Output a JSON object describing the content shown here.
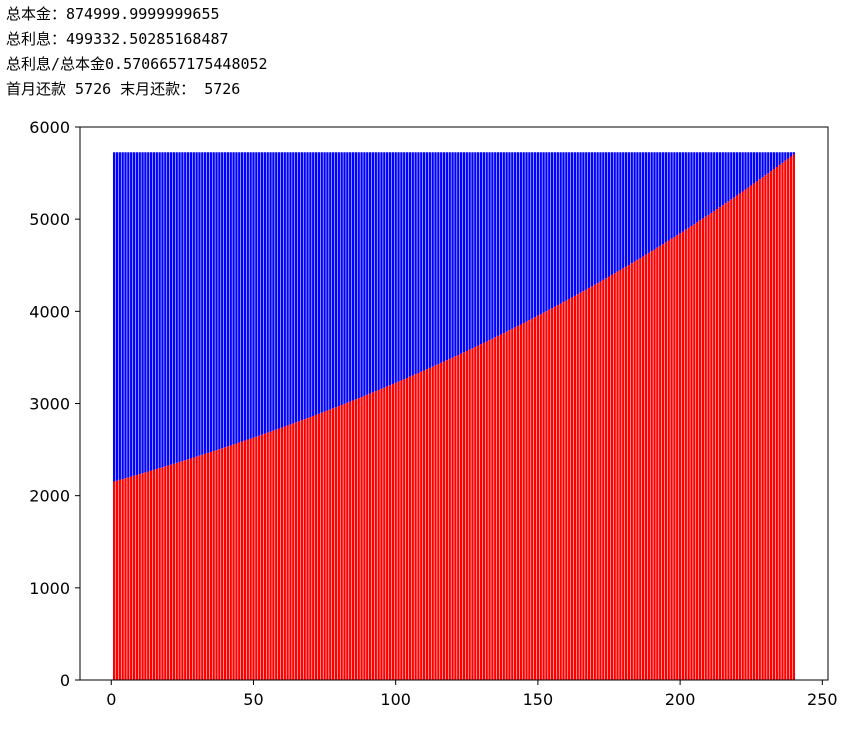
{
  "output_lines": [
    "总本金：874999.9999999655",
    "总利息：499332.50285168487",
    "总利息/总本金0.5706657175448052",
    "首月还款 5726 末月还款： 5726"
  ],
  "chart_data": {
    "type": "bar",
    "stacked": true,
    "x": [
      1,
      2,
      3,
      4,
      5,
      6,
      7,
      8,
      9,
      10,
      11,
      12,
      13,
      14,
      15,
      16,
      17,
      18,
      19,
      20,
      21,
      22,
      23,
      24,
      25,
      26,
      27,
      28,
      29,
      30,
      31,
      32,
      33,
      34,
      35,
      36,
      37,
      38,
      39,
      40,
      41,
      42,
      43,
      44,
      45,
      46,
      47,
      48,
      49,
      50,
      51,
      52,
      53,
      54,
      55,
      56,
      57,
      58,
      59,
      60,
      61,
      62,
      63,
      64,
      65,
      66,
      67,
      68,
      69,
      70,
      71,
      72,
      73,
      74,
      75,
      76,
      77,
      78,
      79,
      80,
      81,
      82,
      83,
      84,
      85,
      86,
      87,
      88,
      89,
      90,
      91,
      92,
      93,
      94,
      95,
      96,
      97,
      98,
      99,
      100,
      101,
      102,
      103,
      104,
      105,
      106,
      107,
      108,
      109,
      110,
      111,
      112,
      113,
      114,
      115,
      116,
      117,
      118,
      119,
      120,
      121,
      122,
      123,
      124,
      125,
      126,
      127,
      128,
      129,
      130,
      131,
      132,
      133,
      134,
      135,
      136,
      137,
      138,
      139,
      140,
      141,
      142,
      143,
      144,
      145,
      146,
      147,
      148,
      149,
      150,
      151,
      152,
      153,
      154,
      155,
      156,
      157,
      158,
      159,
      160,
      161,
      162,
      163,
      164,
      165,
      166,
      167,
      168,
      169,
      170,
      171,
      172,
      173,
      174,
      175,
      176,
      177,
      178,
      179,
      180,
      181,
      182,
      183,
      184,
      185,
      186,
      187,
      188,
      189,
      190,
      191,
      192,
      193,
      194,
      195,
      196,
      197,
      198,
      199,
      200,
      201,
      202,
      203,
      204,
      205,
      206,
      207,
      208,
      209,
      210,
      211,
      212,
      213,
      214,
      215,
      216,
      217,
      218,
      219,
      220,
      221,
      222,
      223,
      224,
      225,
      226,
      227,
      228,
      229,
      230,
      231,
      232,
      233,
      234,
      235,
      236,
      237,
      238,
      239,
      240
    ],
    "series": [
      {
        "color": "red",
        "values": [
          2154,
          2162,
          2171,
          2180,
          2189,
          2198,
          2207,
          2216,
          2225,
          2234,
          2243,
          2252,
          2262,
          2271,
          2280,
          2290,
          2299,
          2308,
          2318,
          2327,
          2336,
          2346,
          2356,
          2366,
          2375,
          2385,
          2395,
          2404,
          2414,
          2424,
          2434,
          2444,
          2454,
          2464,
          2474,
          2484,
          2494,
          2504,
          2515,
          2525,
          2535,
          2545,
          2556,
          2566,
          2577,
          2587,
          2598,
          2609,
          2619,
          2630,
          2640,
          2651,
          2662,
          2673,
          2684,
          2695,
          2706,
          2717,
          2728,
          2739,
          2750,
          2761,
          2773,
          2784,
          2796,
          2807,
          2819,
          2830,
          2842,
          2853,
          2864,
          2876,
          2888,
          2900,
          2912,
          2924,
          2936,
          2948,
          2960,
          2972,
          2984,
          2996,
          3008,
          3021,
          3033,
          3046,
          3058,
          3070,
          3083,
          3095,
          3108,
          3121,
          3133,
          3146,
          3159,
          3172,
          3185,
          3198,
          3211,
          3224,
          3237,
          3250,
          3264,
          3277,
          3291,
          3304,
          3318,
          3331,
          3345,
          3358,
          3372,
          3386,
          3400,
          3414,
          3428,
          3442,
          3456,
          3470,
          3484,
          3498,
          3512,
          3526,
          3541,
          3556,
          3570,
          3585,
          3599,
          3614,
          3629,
          3643,
          3658,
          3673,
          3688,
          3703,
          3719,
          3734,
          3749,
          3764,
          3779,
          3795,
          3810,
          3826,
          3842,
          3857,
          3873,
          3889,
          3905,
          3921,
          3937,
          3953,
          3968,
          3985,
          4001,
          4018,
          4034,
          4051,
          4067,
          4084,
          4100,
          4117,
          4134,
          4151,
          4168,
          4185,
          4202,
          4219,
          4237,
          4254,
          4271,
          4288,
          4305,
          4323,
          4341,
          4359,
          4377,
          4395,
          4413,
          4431,
          4449,
          4467,
          4485,
          4503,
          4522,
          4540,
          4559,
          4578,
          4596,
          4615,
          4634,
          4652,
          4671,
          4690,
          4710,
          4729,
          4749,
          4768,
          4788,
          4807,
          4826,
          4846,
          4865,
          4886,
          4906,
          4926,
          4946,
          4966,
          4987,
          5007,
          5027,
          5047,
          5068,
          5089,
          5110,
          5131,
          5152,
          5173,
          5194,
          5215,
          5236,
          5257,
          5279,
          5300,
          5322,
          5344,
          5366,
          5388,
          5410,
          5432,
          5454,
          5476,
          5498,
          5521,
          5544,
          5566,
          5589,
          5612,
          5635,
          5658,
          5680,
          5703
        ]
      },
      {
        "color": "blue",
        "values": [
          3572,
          3564,
          3555,
          3546,
          3537,
          3528,
          3519,
          3510,
          3501,
          3492,
          3483,
          3474,
          3464,
          3455,
          3446,
          3436,
          3427,
          3418,
          3408,
          3399,
          3390,
          3380,
          3370,
          3360,
          3351,
          3341,
          3331,
          3322,
          3312,
          3302,
          3292,
          3282,
          3272,
          3262,
          3252,
          3242,
          3232,
          3222,
          3211,
          3201,
          3191,
          3181,
          3170,
          3160,
          3149,
          3139,
          3128,
          3117,
          3107,
          3096,
          3086,
          3075,
          3064,
          3053,
          3042,
          3031,
          3020,
          3009,
          2998,
          2987,
          2976,
          2965,
          2953,
          2942,
          2930,
          2919,
          2907,
          2896,
          2884,
          2873,
          2862,
          2850,
          2838,
          2826,
          2814,
          2802,
          2790,
          2778,
          2766,
          2754,
          2742,
          2730,
          2718,
          2705,
          2693,
          2680,
          2668,
          2656,
          2643,
          2631,
          2618,
          2605,
          2593,
          2580,
          2567,
          2554,
          2541,
          2528,
          2515,
          2502,
          2489,
          2476,
          2462,
          2449,
          2435,
          2422,
          2408,
          2395,
          2381,
          2368,
          2354,
          2340,
          2326,
          2312,
          2298,
          2284,
          2270,
          2256,
          2242,
          2228,
          2214,
          2200,
          2185,
          2170,
          2156,
          2141,
          2127,
          2112,
          2097,
          2083,
          2068,
          2053,
          2038,
          2023,
          2007,
          1992,
          1977,
          1962,
          1947,
          1931,
          1916,
          1900,
          1884,
          1869,
          1853,
          1837,
          1821,
          1805,
          1789,
          1773,
          1758,
          1741,
          1725,
          1708,
          1692,
          1675,
          1659,
          1642,
          1626,
          1609,
          1592,
          1575,
          1558,
          1541,
          1524,
          1507,
          1489,
          1472,
          1455,
          1438,
          1421,
          1403,
          1385,
          1367,
          1349,
          1331,
          1313,
          1295,
          1277,
          1259,
          1241,
          1223,
          1204,
          1186,
          1167,
          1148,
          1130,
          1111,
          1092,
          1074,
          1055,
          1036,
          1016,
          997,
          977,
          958,
          938,
          919,
          900,
          880,
          861,
          840,
          820,
          800,
          780,
          760,
          739,
          719,
          699,
          679,
          658,
          637,
          616,
          595,
          574,
          553,
          532,
          511,
          490,
          469,
          447,
          426,
          404,
          382,
          360,
          338,
          316,
          294,
          272,
          250,
          228,
          205,
          182,
          160,
          137,
          114,
          91,
          68,
          46,
          23
        ]
      }
    ],
    "bar_width": 0.8,
    "xlim": [
      -11,
      252
    ],
    "ylim": [
      0,
      6000
    ],
    "xticks": [
      0,
      50,
      100,
      150,
      200,
      250
    ],
    "yticks": [
      0,
      1000,
      2000,
      3000,
      4000,
      5000,
      6000
    ]
  }
}
